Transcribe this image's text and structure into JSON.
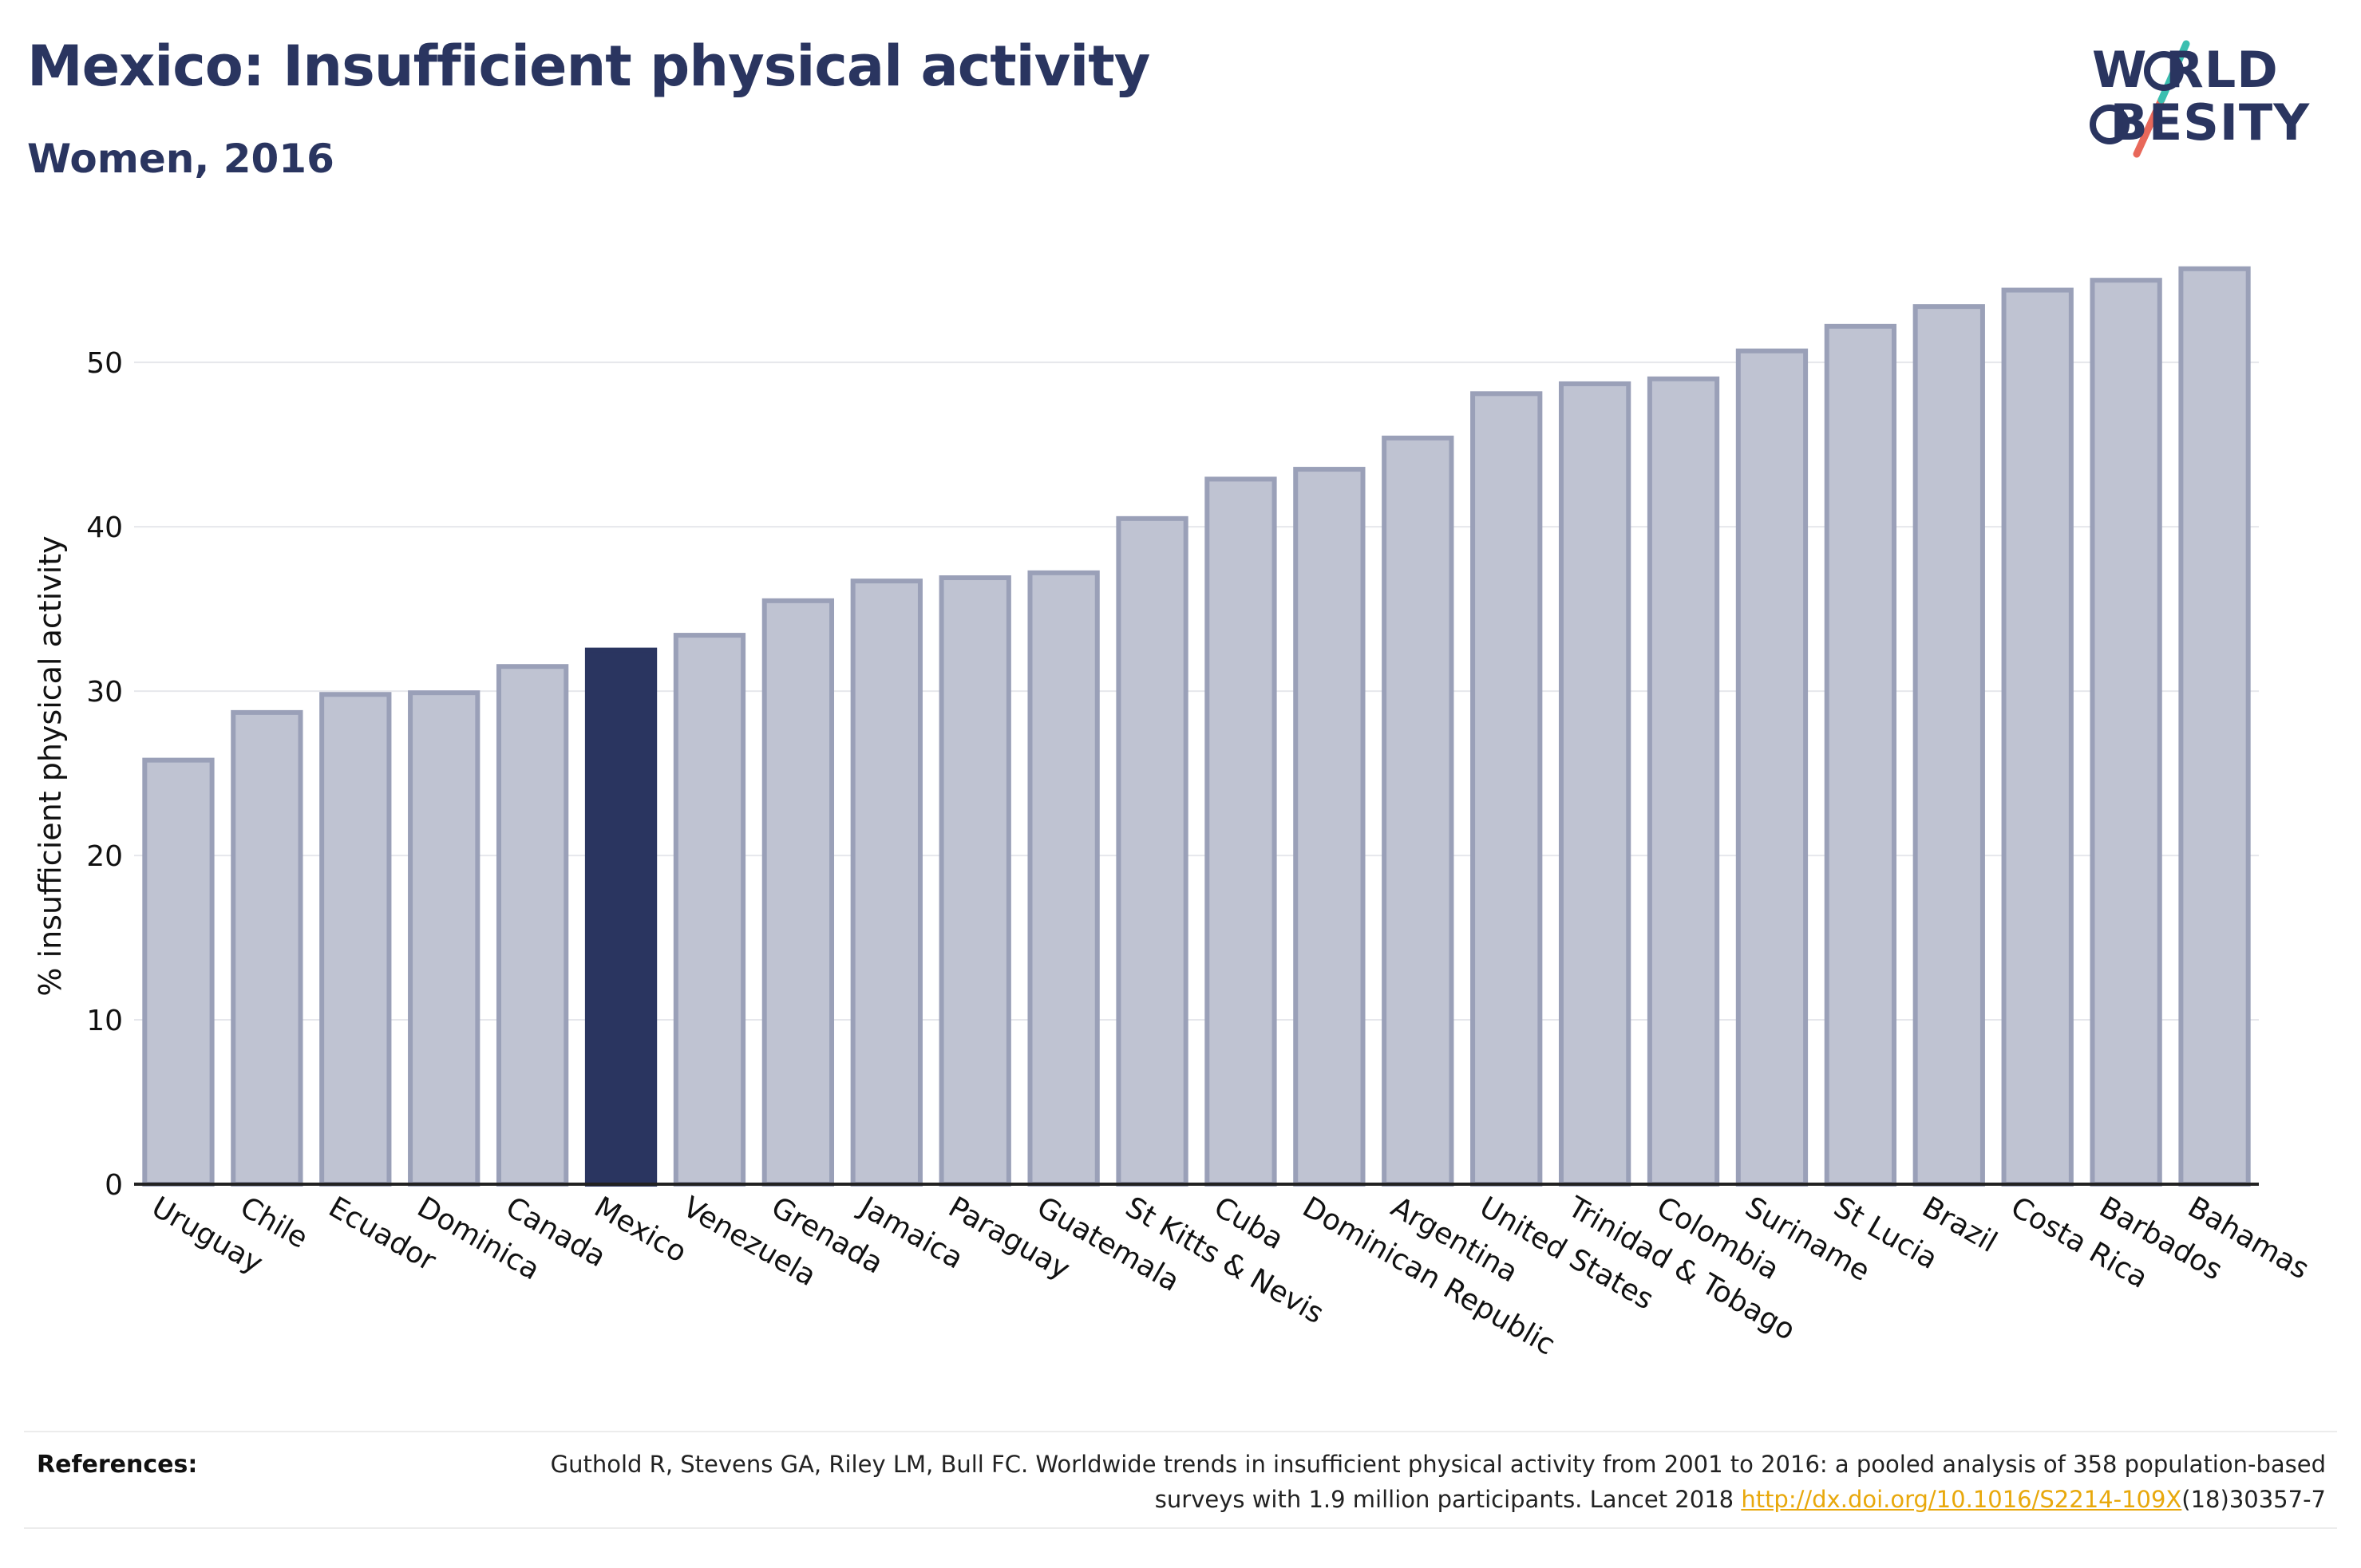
{
  "header": {
    "title": "Mexico: Insufficient physical activity",
    "subtitle": "Women, 2016"
  },
  "logo": {
    "line1": "W RLD",
    "line2": " BESITY",
    "brand_color": "#2a3560",
    "slash_color_top": "#3bbfb0",
    "slash_color_bottom": "#e8685a"
  },
  "chart_data": {
    "type": "bar",
    "title": "",
    "xlabel": "",
    "ylabel": "% insufficient physical activity",
    "ylim": [
      0,
      57
    ],
    "yticks": [
      0,
      10,
      20,
      30,
      40,
      50
    ],
    "grid": true,
    "highlight": "Mexico",
    "highlight_color": "#2a3560",
    "bar_color": "#bfc3d2",
    "bar_edge_color": "#9aa0b8",
    "categories": [
      "Uruguay",
      "Chile",
      "Ecuador",
      "Dominica",
      "Canada",
      "Mexico",
      "Venezuela",
      "Grenada",
      "Jamaica",
      "Paraguay",
      "Guatemala",
      "St Kitts & Nevis",
      "Cuba",
      "Dominican Republic",
      "Argentina",
      "United States",
      "Trinidad & Tobago",
      "Colombia",
      "Suriname",
      "St Lucia",
      "Brazil",
      "Costa Rica",
      "Barbados",
      "Bahamas"
    ],
    "values": [
      25.8,
      28.7,
      29.8,
      29.9,
      31.5,
      32.5,
      33.4,
      35.5,
      36.7,
      36.9,
      37.2,
      40.5,
      42.9,
      43.5,
      45.4,
      48.1,
      48.7,
      49.0,
      50.7,
      52.2,
      53.4,
      54.4,
      55.0,
      55.7
    ]
  },
  "references": {
    "label": "References:",
    "text_before_link": "Guthold R, Stevens GA, Riley LM, Bull FC. Worldwide trends in insufficient physical activity from 2001 to 2016: a pooled analysis of 358 population-based surveys with 1.9 million participants. Lancet 2018 ",
    "link_text": "http://dx.doi.org/10.1016/S2214-109X",
    "text_after_link": "(18)30357-7"
  }
}
